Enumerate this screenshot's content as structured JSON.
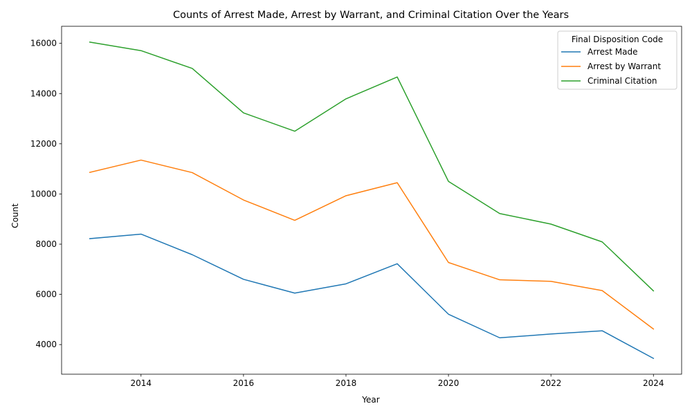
{
  "chart_data": {
    "type": "line",
    "title": "Counts of Arrest Made, Arrest by Warrant, and Criminal Citation Over the Years",
    "xlabel": "Year",
    "ylabel": "Count",
    "x": [
      2013,
      2014,
      2015,
      2016,
      2017,
      2018,
      2019,
      2020,
      2021,
      2022,
      2023,
      2024
    ],
    "xlim": [
      2012.45,
      2024.55
    ],
    "ylim": [
      2820,
      16680
    ],
    "xticks": [
      2014,
      2016,
      2018,
      2020,
      2022,
      2024
    ],
    "yticks": [
      4000,
      6000,
      8000,
      10000,
      12000,
      14000,
      16000
    ],
    "grid": false,
    "legend": {
      "title": "Final Disposition Code",
      "placement": "top-right"
    },
    "series": [
      {
        "name": "Arrest Made",
        "color": "#1f77b4",
        "values": [
          8220,
          8400,
          7580,
          6600,
          6050,
          6420,
          7220,
          5210,
          4270,
          4420,
          4550,
          3450
        ]
      },
      {
        "name": "Arrest by Warrant",
        "color": "#ff7f0e",
        "values": [
          10860,
          11350,
          10850,
          9760,
          8950,
          9930,
          10450,
          7270,
          6580,
          6520,
          6150,
          4620
        ]
      },
      {
        "name": "Criminal Citation",
        "color": "#2ca02c",
        "values": [
          16050,
          15710,
          15000,
          13230,
          12500,
          13790,
          14660,
          10500,
          9220,
          8800,
          8090,
          6140
        ]
      }
    ]
  }
}
